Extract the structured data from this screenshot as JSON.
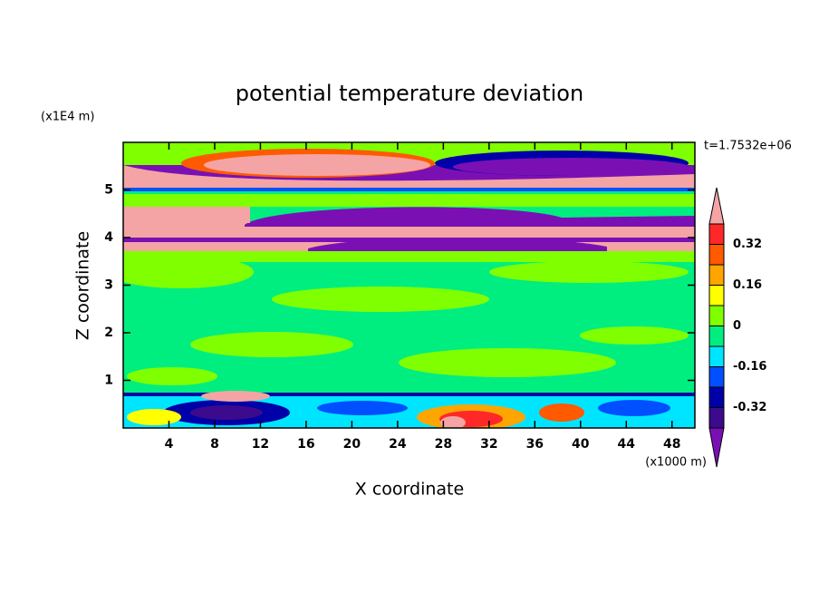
{
  "chart_data": {
    "type": "contour",
    "title": "potential temperature deviation",
    "x_label": "X coordinate",
    "y_label": "Z coordinate",
    "x_unit": "(x1000 m)",
    "y_unit": "(x1E4 m)",
    "annotation": "t=1.7532e+06",
    "xlim": [
      0,
      50
    ],
    "xticks": [
      4,
      8,
      12,
      16,
      20,
      24,
      28,
      32,
      36,
      40,
      44,
      48
    ],
    "ylim": [
      0,
      6
    ],
    "yticks": [
      1,
      2,
      3,
      4,
      5
    ],
    "colorbar": {
      "levels": [
        -0.4,
        -0.32,
        -0.24,
        -0.16,
        -0.08,
        0,
        0.08,
        0.16,
        0.24,
        0.32,
        0.4
      ],
      "colors": [
        "#3c0a8c",
        "#0000a8",
        "#0050ff",
        "#00e5ff",
        "#00ee80",
        "#80ff00",
        "#ffff00",
        "#ffa500",
        "#ff5a00",
        "#ff2828"
      ],
      "below_color": "#7a10b4",
      "above_color": "#f4a4a4",
      "ticks": [
        -0.32,
        -0.16,
        0,
        0.16,
        0.32
      ]
    }
  }
}
